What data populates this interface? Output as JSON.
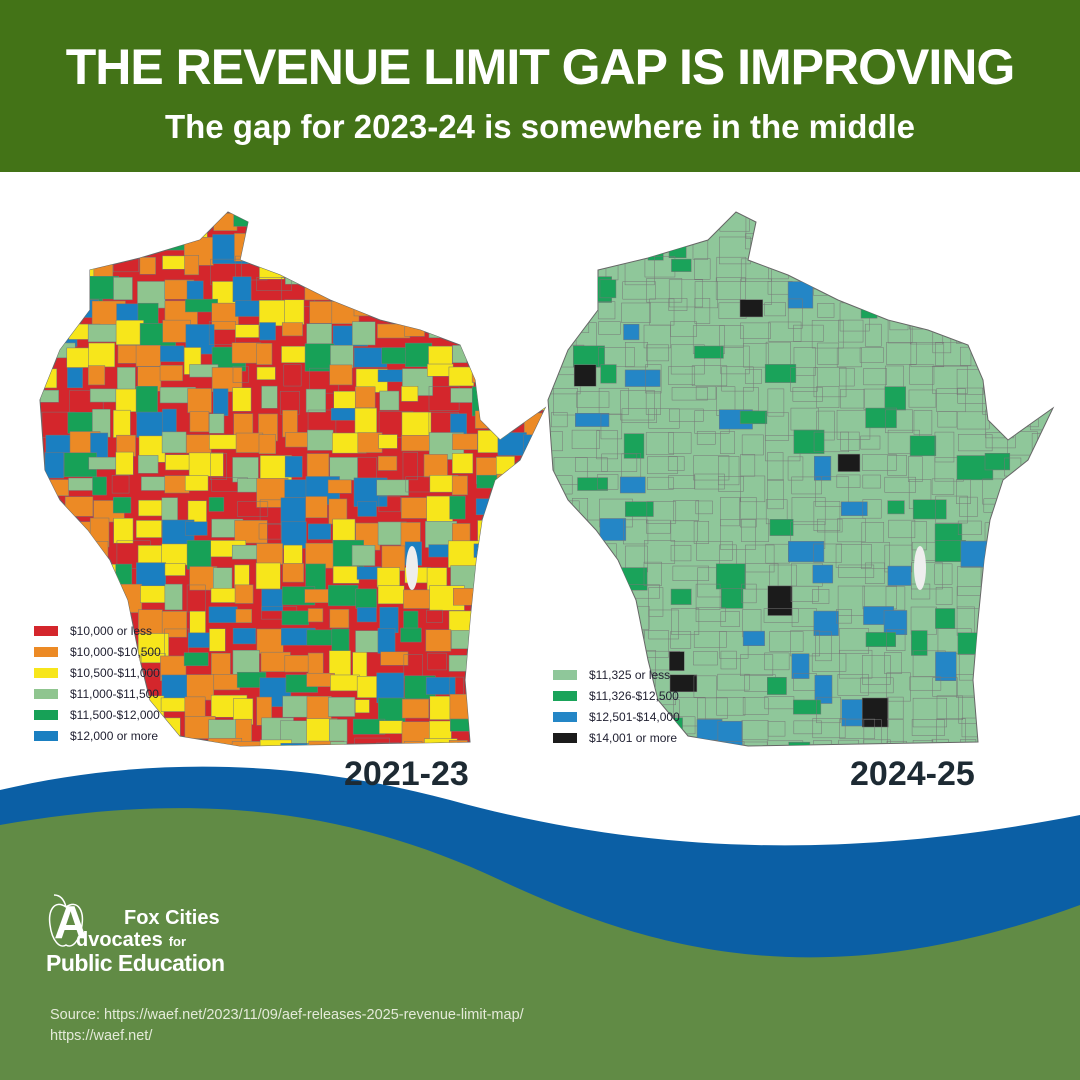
{
  "header": {
    "title": "THE REVENUE LIMIT GAP IS IMPROVING",
    "subtitle": "The gap for 2023-24 is somewhere in the middle"
  },
  "maps": [
    {
      "year": "2021-23",
      "base_color": "#d4262c",
      "legend": [
        {
          "label": "$10,000 or less",
          "color": "#d4262c"
        },
        {
          "label": "$10,000-$10,500",
          "color": "#ec8a25"
        },
        {
          "label": "$10,500-$11,000",
          "color": "#f7e61b"
        },
        {
          "label": "$11,000-$11,500",
          "color": "#8fc58f"
        },
        {
          "label": "$11,500-$12,000",
          "color": "#17a157"
        },
        {
          "label": "$12,000 or more",
          "color": "#1a7fc1"
        }
      ]
    },
    {
      "year": "2024-25",
      "base_color": "#8fc79a",
      "legend": [
        {
          "label": "$11,325 or less",
          "color": "#8fc79a"
        },
        {
          "label": "$11,326-$12,500",
          "color": "#1aa35a"
        },
        {
          "label": "$12,501-$14,000",
          "color": "#2486c6"
        },
        {
          "label": "$14,001 or more",
          "color": "#1b1b1b"
        }
      ]
    }
  ],
  "logo": {
    "line1": "Fox Cities",
    "line2": "dvocates",
    "line2b": "for",
    "line3": "Public Education",
    "initial": "A"
  },
  "source": {
    "line1": "Source: https://waef.net/2023/11/09/aef-releases-2025-revenue-limit-map/",
    "line2": "https://waef.net/"
  },
  "colors": {
    "header": "#437317",
    "wave_blue": "#0b5fa5",
    "footer_green": "#618b45"
  }
}
